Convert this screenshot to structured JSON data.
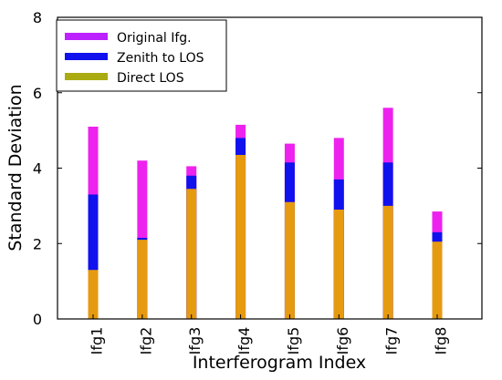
{
  "chart_data": {
    "type": "bar",
    "xlabel": "Interferogram Index",
    "ylabel": "Standard Deviation",
    "ylim": [
      0,
      8
    ],
    "yticks": [
      0,
      2,
      4,
      6,
      8
    ],
    "grid": false,
    "legend_position": "top-left",
    "categories": [
      "Ifg1",
      "Ifg2",
      "Ifg3",
      "Ifg4",
      "Ifg5",
      "Ifg6",
      "Ifg7",
      "Ifg8"
    ],
    "series": [
      {
        "name": "Original Ifg.",
        "color": "#ee22ee",
        "values": [
          5.1,
          4.2,
          4.05,
          5.15,
          4.65,
          4.8,
          5.6,
          2.85
        ]
      },
      {
        "name": "Zenith to LOS",
        "color": "#1111ee",
        "values": [
          3.3,
          2.15,
          3.8,
          4.8,
          4.15,
          3.7,
          4.15,
          2.3
        ]
      },
      {
        "name": "Direct LOS",
        "color": "#e69a10",
        "values": [
          1.3,
          2.1,
          3.45,
          4.35,
          3.1,
          2.9,
          3.0,
          2.05
        ]
      }
    ],
    "legend_colors": [
      "#bb22ff",
      "#1111ee",
      "#aaaa11"
    ]
  }
}
